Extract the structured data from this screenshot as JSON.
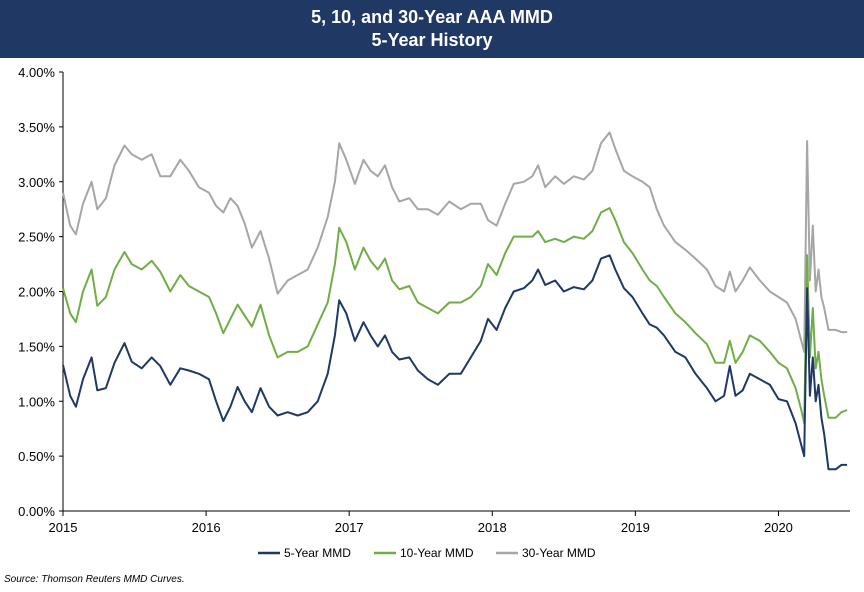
{
  "chart_data": {
    "type": "line",
    "title": "5, 10, and 30-Year AAA MMD",
    "subtitle": "5-Year History",
    "xlabel": "",
    "ylabel": "",
    "xlim": [
      2015.0,
      2020.5
    ],
    "ylim": [
      0.0,
      4.0
    ],
    "y_ticks": [
      0.0,
      0.5,
      1.0,
      1.5,
      2.0,
      2.5,
      3.0,
      3.5,
      4.0
    ],
    "y_tick_labels": [
      "0.00%",
      "0.50%",
      "1.00%",
      "1.50%",
      "2.00%",
      "2.50%",
      "3.00%",
      "3.50%",
      "4.00%"
    ],
    "x_ticks": [
      2015,
      2016,
      2017,
      2018,
      2019,
      2020
    ],
    "x_tick_labels": [
      "2015",
      "2016",
      "2017",
      "2018",
      "2019",
      "2020"
    ],
    "grid": false,
    "legend_position": "bottom-center",
    "series": [
      {
        "name": "5-Year MMD",
        "color": "#1f3864",
        "points": [
          [
            2015.0,
            1.33
          ],
          [
            2015.05,
            1.05
          ],
          [
            2015.09,
            0.95
          ],
          [
            2015.14,
            1.2
          ],
          [
            2015.2,
            1.4
          ],
          [
            2015.24,
            1.1
          ],
          [
            2015.3,
            1.12
          ],
          [
            2015.36,
            1.35
          ],
          [
            2015.43,
            1.53
          ],
          [
            2015.48,
            1.36
          ],
          [
            2015.55,
            1.3
          ],
          [
            2015.62,
            1.4
          ],
          [
            2015.68,
            1.32
          ],
          [
            2015.75,
            1.15
          ],
          [
            2015.82,
            1.3
          ],
          [
            2015.88,
            1.28
          ],
          [
            2015.95,
            1.25
          ],
          [
            2016.02,
            1.2
          ],
          [
            2016.07,
            1.0
          ],
          [
            2016.12,
            0.82
          ],
          [
            2016.17,
            0.95
          ],
          [
            2016.22,
            1.13
          ],
          [
            2016.27,
            1.0
          ],
          [
            2016.32,
            0.9
          ],
          [
            2016.38,
            1.12
          ],
          [
            2016.44,
            0.95
          ],
          [
            2016.5,
            0.87
          ],
          [
            2016.57,
            0.9
          ],
          [
            2016.64,
            0.87
          ],
          [
            2016.71,
            0.9
          ],
          [
            2016.78,
            1.0
          ],
          [
            2016.85,
            1.25
          ],
          [
            2016.9,
            1.6
          ],
          [
            2016.93,
            1.92
          ],
          [
            2016.98,
            1.8
          ],
          [
            2017.04,
            1.55
          ],
          [
            2017.1,
            1.72
          ],
          [
            2017.15,
            1.6
          ],
          [
            2017.2,
            1.5
          ],
          [
            2017.25,
            1.6
          ],
          [
            2017.3,
            1.45
          ],
          [
            2017.35,
            1.38
          ],
          [
            2017.42,
            1.4
          ],
          [
            2017.48,
            1.28
          ],
          [
            2017.55,
            1.2
          ],
          [
            2017.62,
            1.15
          ],
          [
            2017.7,
            1.25
          ],
          [
            2017.78,
            1.25
          ],
          [
            2017.85,
            1.4
          ],
          [
            2017.92,
            1.55
          ],
          [
            2017.97,
            1.75
          ],
          [
            2018.03,
            1.65
          ],
          [
            2018.09,
            1.85
          ],
          [
            2018.15,
            2.0
          ],
          [
            2018.22,
            2.03
          ],
          [
            2018.28,
            2.1
          ],
          [
            2018.32,
            2.2
          ],
          [
            2018.37,
            2.06
          ],
          [
            2018.44,
            2.1
          ],
          [
            2018.5,
            2.0
          ],
          [
            2018.57,
            2.04
          ],
          [
            2018.64,
            2.02
          ],
          [
            2018.7,
            2.1
          ],
          [
            2018.76,
            2.3
          ],
          [
            2018.82,
            2.33
          ],
          [
            2018.86,
            2.2
          ],
          [
            2018.92,
            2.03
          ],
          [
            2018.98,
            1.95
          ],
          [
            2019.05,
            1.8
          ],
          [
            2019.1,
            1.7
          ],
          [
            2019.15,
            1.67
          ],
          [
            2019.2,
            1.6
          ],
          [
            2019.28,
            1.45
          ],
          [
            2019.35,
            1.4
          ],
          [
            2019.42,
            1.25
          ],
          [
            2019.5,
            1.12
          ],
          [
            2019.56,
            1.0
          ],
          [
            2019.62,
            1.05
          ],
          [
            2019.66,
            1.32
          ],
          [
            2019.7,
            1.05
          ],
          [
            2019.75,
            1.1
          ],
          [
            2019.8,
            1.25
          ],
          [
            2019.87,
            1.2
          ],
          [
            2019.94,
            1.15
          ],
          [
            2020.0,
            1.02
          ],
          [
            2020.06,
            1.0
          ],
          [
            2020.12,
            0.8
          ],
          [
            2020.16,
            0.6
          ],
          [
            2020.18,
            0.5
          ],
          [
            2020.2,
            2.03
          ],
          [
            2020.22,
            1.05
          ],
          [
            2020.24,
            1.4
          ],
          [
            2020.26,
            1.0
          ],
          [
            2020.28,
            1.15
          ],
          [
            2020.3,
            0.85
          ],
          [
            2020.32,
            0.7
          ],
          [
            2020.35,
            0.38
          ],
          [
            2020.4,
            0.38
          ],
          [
            2020.44,
            0.42
          ],
          [
            2020.48,
            0.42
          ]
        ]
      },
      {
        "name": "10-Year MMD",
        "color": "#70ad47",
        "points": [
          [
            2015.0,
            2.03
          ],
          [
            2015.05,
            1.8
          ],
          [
            2015.09,
            1.72
          ],
          [
            2015.14,
            2.0
          ],
          [
            2015.2,
            2.2
          ],
          [
            2015.24,
            1.87
          ],
          [
            2015.3,
            1.95
          ],
          [
            2015.36,
            2.2
          ],
          [
            2015.43,
            2.36
          ],
          [
            2015.48,
            2.25
          ],
          [
            2015.55,
            2.2
          ],
          [
            2015.62,
            2.28
          ],
          [
            2015.68,
            2.18
          ],
          [
            2015.75,
            2.0
          ],
          [
            2015.82,
            2.15
          ],
          [
            2015.88,
            2.05
          ],
          [
            2015.95,
            2.0
          ],
          [
            2016.02,
            1.95
          ],
          [
            2016.07,
            1.8
          ],
          [
            2016.12,
            1.62
          ],
          [
            2016.17,
            1.75
          ],
          [
            2016.22,
            1.88
          ],
          [
            2016.27,
            1.78
          ],
          [
            2016.32,
            1.68
          ],
          [
            2016.38,
            1.88
          ],
          [
            2016.44,
            1.6
          ],
          [
            2016.5,
            1.4
          ],
          [
            2016.57,
            1.45
          ],
          [
            2016.64,
            1.45
          ],
          [
            2016.71,
            1.5
          ],
          [
            2016.78,
            1.7
          ],
          [
            2016.85,
            1.9
          ],
          [
            2016.9,
            2.25
          ],
          [
            2016.93,
            2.58
          ],
          [
            2016.98,
            2.45
          ],
          [
            2017.04,
            2.2
          ],
          [
            2017.1,
            2.4
          ],
          [
            2017.15,
            2.28
          ],
          [
            2017.2,
            2.2
          ],
          [
            2017.25,
            2.3
          ],
          [
            2017.3,
            2.1
          ],
          [
            2017.35,
            2.02
          ],
          [
            2017.42,
            2.05
          ],
          [
            2017.48,
            1.9
          ],
          [
            2017.55,
            1.85
          ],
          [
            2017.62,
            1.8
          ],
          [
            2017.7,
            1.9
          ],
          [
            2017.78,
            1.9
          ],
          [
            2017.85,
            1.95
          ],
          [
            2017.92,
            2.05
          ],
          [
            2017.97,
            2.25
          ],
          [
            2018.03,
            2.15
          ],
          [
            2018.09,
            2.35
          ],
          [
            2018.15,
            2.5
          ],
          [
            2018.22,
            2.5
          ],
          [
            2018.28,
            2.5
          ],
          [
            2018.32,
            2.55
          ],
          [
            2018.37,
            2.45
          ],
          [
            2018.44,
            2.48
          ],
          [
            2018.5,
            2.45
          ],
          [
            2018.57,
            2.5
          ],
          [
            2018.64,
            2.48
          ],
          [
            2018.7,
            2.55
          ],
          [
            2018.76,
            2.72
          ],
          [
            2018.82,
            2.76
          ],
          [
            2018.86,
            2.65
          ],
          [
            2018.92,
            2.45
          ],
          [
            2018.98,
            2.35
          ],
          [
            2019.05,
            2.2
          ],
          [
            2019.1,
            2.1
          ],
          [
            2019.15,
            2.05
          ],
          [
            2019.2,
            1.95
          ],
          [
            2019.28,
            1.8
          ],
          [
            2019.35,
            1.72
          ],
          [
            2019.42,
            1.62
          ],
          [
            2019.5,
            1.52
          ],
          [
            2019.56,
            1.35
          ],
          [
            2019.62,
            1.35
          ],
          [
            2019.66,
            1.55
          ],
          [
            2019.7,
            1.35
          ],
          [
            2019.75,
            1.45
          ],
          [
            2019.8,
            1.6
          ],
          [
            2019.87,
            1.55
          ],
          [
            2019.94,
            1.45
          ],
          [
            2020.0,
            1.35
          ],
          [
            2020.06,
            1.3
          ],
          [
            2020.12,
            1.12
          ],
          [
            2020.16,
            0.92
          ],
          [
            2020.18,
            0.8
          ],
          [
            2020.2,
            2.33
          ],
          [
            2020.22,
            1.4
          ],
          [
            2020.24,
            1.85
          ],
          [
            2020.26,
            1.3
          ],
          [
            2020.28,
            1.45
          ],
          [
            2020.3,
            1.2
          ],
          [
            2020.32,
            1.05
          ],
          [
            2020.35,
            0.85
          ],
          [
            2020.4,
            0.85
          ],
          [
            2020.44,
            0.9
          ],
          [
            2020.48,
            0.92
          ]
        ]
      },
      {
        "name": "30-Year MMD",
        "color": "#a6a6a6",
        "points": [
          [
            2015.0,
            2.9
          ],
          [
            2015.05,
            2.6
          ],
          [
            2015.09,
            2.52
          ],
          [
            2015.14,
            2.8
          ],
          [
            2015.2,
            3.0
          ],
          [
            2015.24,
            2.75
          ],
          [
            2015.3,
            2.85
          ],
          [
            2015.36,
            3.15
          ],
          [
            2015.43,
            3.33
          ],
          [
            2015.48,
            3.25
          ],
          [
            2015.55,
            3.2
          ],
          [
            2015.62,
            3.25
          ],
          [
            2015.68,
            3.05
          ],
          [
            2015.75,
            3.05
          ],
          [
            2015.82,
            3.2
          ],
          [
            2015.88,
            3.1
          ],
          [
            2015.95,
            2.95
          ],
          [
            2016.02,
            2.9
          ],
          [
            2016.07,
            2.78
          ],
          [
            2016.12,
            2.72
          ],
          [
            2016.17,
            2.85
          ],
          [
            2016.22,
            2.78
          ],
          [
            2016.27,
            2.62
          ],
          [
            2016.32,
            2.4
          ],
          [
            2016.38,
            2.55
          ],
          [
            2016.44,
            2.3
          ],
          [
            2016.5,
            1.98
          ],
          [
            2016.57,
            2.1
          ],
          [
            2016.64,
            2.15
          ],
          [
            2016.71,
            2.2
          ],
          [
            2016.78,
            2.4
          ],
          [
            2016.85,
            2.68
          ],
          [
            2016.9,
            3.0
          ],
          [
            2016.93,
            3.35
          ],
          [
            2016.98,
            3.2
          ],
          [
            2017.04,
            2.98
          ],
          [
            2017.1,
            3.2
          ],
          [
            2017.15,
            3.1
          ],
          [
            2017.2,
            3.05
          ],
          [
            2017.25,
            3.15
          ],
          [
            2017.3,
            2.95
          ],
          [
            2017.35,
            2.82
          ],
          [
            2017.42,
            2.85
          ],
          [
            2017.48,
            2.75
          ],
          [
            2017.55,
            2.75
          ],
          [
            2017.62,
            2.7
          ],
          [
            2017.7,
            2.82
          ],
          [
            2017.78,
            2.75
          ],
          [
            2017.85,
            2.8
          ],
          [
            2017.92,
            2.8
          ],
          [
            2017.97,
            2.65
          ],
          [
            2018.03,
            2.6
          ],
          [
            2018.09,
            2.8
          ],
          [
            2018.15,
            2.98
          ],
          [
            2018.22,
            3.0
          ],
          [
            2018.28,
            3.05
          ],
          [
            2018.32,
            3.15
          ],
          [
            2018.37,
            2.95
          ],
          [
            2018.44,
            3.05
          ],
          [
            2018.5,
            2.98
          ],
          [
            2018.57,
            3.05
          ],
          [
            2018.64,
            3.02
          ],
          [
            2018.7,
            3.1
          ],
          [
            2018.76,
            3.35
          ],
          [
            2018.82,
            3.45
          ],
          [
            2018.86,
            3.3
          ],
          [
            2018.92,
            3.1
          ],
          [
            2018.98,
            3.05
          ],
          [
            2019.05,
            3.0
          ],
          [
            2019.1,
            2.95
          ],
          [
            2019.15,
            2.75
          ],
          [
            2019.2,
            2.6
          ],
          [
            2019.28,
            2.45
          ],
          [
            2019.35,
            2.38
          ],
          [
            2019.42,
            2.3
          ],
          [
            2019.5,
            2.2
          ],
          [
            2019.56,
            2.05
          ],
          [
            2019.62,
            2.0
          ],
          [
            2019.66,
            2.18
          ],
          [
            2019.7,
            2.0
          ],
          [
            2019.75,
            2.1
          ],
          [
            2019.8,
            2.22
          ],
          [
            2019.87,
            2.1
          ],
          [
            2019.94,
            2.0
          ],
          [
            2020.0,
            1.95
          ],
          [
            2020.06,
            1.9
          ],
          [
            2020.12,
            1.75
          ],
          [
            2020.16,
            1.55
          ],
          [
            2020.18,
            1.45
          ],
          [
            2020.2,
            3.37
          ],
          [
            2020.22,
            2.1
          ],
          [
            2020.24,
            2.6
          ],
          [
            2020.26,
            2.0
          ],
          [
            2020.28,
            2.2
          ],
          [
            2020.3,
            1.95
          ],
          [
            2020.32,
            1.85
          ],
          [
            2020.35,
            1.65
          ],
          [
            2020.4,
            1.65
          ],
          [
            2020.44,
            1.63
          ],
          [
            2020.48,
            1.63
          ]
        ]
      }
    ]
  },
  "source": "Source: Thomson Reuters MMD Curves."
}
